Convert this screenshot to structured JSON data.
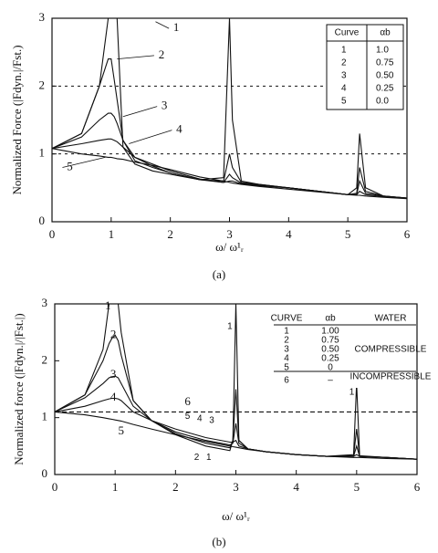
{
  "chart_data": [
    {
      "type": "line",
      "caption": "(a)",
      "x_label": "ω/ ω¹ᵣ",
      "y_label": "Normalized Force (|Fdyn.|/Fst.)",
      "xlim": [
        0,
        6
      ],
      "ylim": [
        0,
        3
      ],
      "xticks": [
        0,
        1,
        2,
        3,
        4,
        5,
        6
      ],
      "yticks": [
        0,
        1,
        2,
        3
      ],
      "grid": true,
      "legend_headers": [
        "Curve",
        "αb"
      ],
      "alpha_b": [
        "1.0",
        "0.75",
        "0.50",
        "0.25",
        "0.0"
      ],
      "x": [
        0,
        0.5,
        0.8,
        0.95,
        1.0,
        1.05,
        1.1,
        1.2,
        1.4,
        1.7,
        2,
        2.5,
        2.9,
        3.0,
        3.05,
        3.2,
        3.5,
        4,
        4.5,
        5,
        5.15,
        5.2,
        5.3,
        5.6,
        6
      ],
      "series": [
        {
          "name": "1",
          "color": "#111111",
          "values": [
            1.08,
            1.3,
            2.0,
            3.0,
            3.0,
            3.0,
            3.0,
            1.1,
            0.85,
            0.75,
            0.7,
            0.62,
            0.65,
            3.0,
            1.5,
            0.6,
            0.55,
            0.5,
            0.45,
            0.4,
            0.5,
            1.3,
            0.5,
            0.38,
            0.35
          ]
        },
        {
          "name": "2",
          "color": "#111111",
          "values": [
            1.08,
            1.3,
            2.0,
            2.4,
            2.4,
            2.1,
            1.8,
            1.2,
            0.9,
            0.8,
            0.72,
            0.62,
            0.6,
            1.0,
            0.8,
            0.58,
            0.55,
            0.5,
            0.45,
            0.4,
            0.42,
            0.8,
            0.45,
            0.38,
            0.35
          ]
        },
        {
          "name": "3",
          "color": "#111111",
          "values": [
            1.08,
            1.25,
            1.5,
            1.6,
            1.6,
            1.55,
            1.45,
            1.2,
            0.95,
            0.82,
            0.72,
            0.62,
            0.58,
            0.7,
            0.65,
            0.57,
            0.54,
            0.5,
            0.45,
            0.4,
            0.4,
            0.6,
            0.42,
            0.38,
            0.35
          ]
        },
        {
          "name": "4",
          "color": "#111111",
          "values": [
            1.08,
            1.15,
            1.2,
            1.22,
            1.22,
            1.2,
            1.18,
            1.1,
            0.95,
            0.85,
            0.75,
            0.63,
            0.58,
            0.6,
            0.6,
            0.56,
            0.53,
            0.5,
            0.45,
            0.4,
            0.4,
            0.45,
            0.4,
            0.37,
            0.35
          ]
        },
        {
          "name": "5",
          "color": "#111111",
          "values": [
            1.08,
            1.0,
            0.97,
            0.95,
            0.95,
            0.94,
            0.93,
            0.92,
            0.88,
            0.83,
            0.77,
            0.66,
            0.6,
            0.58,
            0.57,
            0.55,
            0.52,
            0.48,
            0.44,
            0.4,
            0.39,
            0.39,
            0.38,
            0.36,
            0.34
          ]
        }
      ]
    },
    {
      "type": "line",
      "caption": "(b)",
      "x_label": "ω/ ω¹ᵣ",
      "y_label": "Normalized force (|Fdyn.|/|Fst.|)",
      "xlim": [
        0,
        6
      ],
      "ylim": [
        0,
        3
      ],
      "xticks": [
        0,
        1,
        2,
        3,
        4,
        5,
        6
      ],
      "yticks": [
        0,
        1,
        2,
        3
      ],
      "grid": false,
      "legend_headers": [
        "CURVE",
        "αb",
        "WATER"
      ],
      "alpha_b": [
        "1.00",
        "0.75",
        "0.50",
        "0.25",
        "0",
        "–"
      ],
      "water": [
        "COMPRESSIBLE",
        "INCOMPRESSIBLE"
      ],
      "x": [
        0,
        0.5,
        0.8,
        0.9,
        0.95,
        1.0,
        1.05,
        1.1,
        1.3,
        1.6,
        2,
        2.5,
        2.9,
        2.95,
        3.0,
        3.05,
        3.2,
        3.5,
        4,
        4.5,
        4.95,
        5.0,
        5.05,
        5.5,
        6
      ],
      "series": [
        {
          "name": "1",
          "color": "#111111",
          "values": [
            1.1,
            1.4,
            2.2,
            3.0,
            3.0,
            3.0,
            3.0,
            2.5,
            1.3,
            0.95,
            0.7,
            0.5,
            0.42,
            0.6,
            3.0,
            0.6,
            0.45,
            0.4,
            0.35,
            0.32,
            0.35,
            1.6,
            0.33,
            0.3,
            0.27
          ]
        },
        {
          "name": "2",
          "color": "#111111",
          "values": [
            1.1,
            1.4,
            2.0,
            2.3,
            2.4,
            2.45,
            2.35,
            2.1,
            1.3,
            0.95,
            0.72,
            0.55,
            0.47,
            0.6,
            1.5,
            0.6,
            0.45,
            0.4,
            0.35,
            0.32,
            0.33,
            0.8,
            0.32,
            0.3,
            0.27
          ]
        },
        {
          "name": "3",
          "color": "#111111",
          "values": [
            1.1,
            1.35,
            1.6,
            1.7,
            1.72,
            1.73,
            1.7,
            1.6,
            1.2,
            0.95,
            0.75,
            0.6,
            0.52,
            0.55,
            0.9,
            0.55,
            0.45,
            0.4,
            0.35,
            0.32,
            0.32,
            0.5,
            0.32,
            0.3,
            0.27
          ]
        },
        {
          "name": "4",
          "color": "#111111",
          "values": [
            1.1,
            1.2,
            1.3,
            1.33,
            1.34,
            1.34,
            1.33,
            1.3,
            1.1,
            0.95,
            0.8,
            0.65,
            0.57,
            0.57,
            0.6,
            0.5,
            0.45,
            0.4,
            0.35,
            0.32,
            0.32,
            0.35,
            0.32,
            0.3,
            0.27
          ]
        },
        {
          "name": "5",
          "color": "#111111",
          "values": [
            1.1,
            1.05,
            1.0,
            0.98,
            0.97,
            0.96,
            0.95,
            0.94,
            0.88,
            0.8,
            0.7,
            0.58,
            0.5,
            0.49,
            0.48,
            0.47,
            0.44,
            0.4,
            0.35,
            0.32,
            0.3,
            0.3,
            0.3,
            0.28,
            0.27
          ]
        },
        {
          "name": "6",
          "color": "#111111",
          "dashed": true,
          "values": [
            1.1,
            1.1,
            1.1,
            1.1,
            1.1,
            1.1,
            1.1,
            1.1,
            1.1,
            1.1,
            1.1,
            1.1,
            1.1,
            1.1,
            1.1,
            1.1,
            1.1,
            1.1,
            1.1,
            1.1,
            1.1,
            1.1,
            1.1,
            1.1,
            1.1
          ]
        }
      ]
    }
  ]
}
